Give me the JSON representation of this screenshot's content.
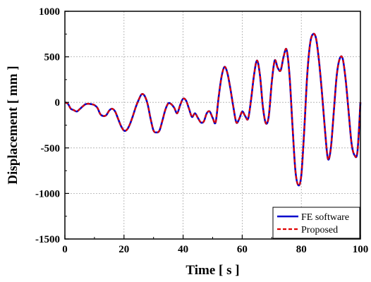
{
  "chart_data": {
    "type": "line",
    "xlabel": "Time [ s ]",
    "ylabel": "Displacement [ mm ]",
    "xlim": [
      0,
      100
    ],
    "ylim": [
      -1500,
      1000
    ],
    "x_ticks": [
      0,
      20,
      40,
      60,
      80,
      100
    ],
    "x_tick_labels": [
      "0",
      "20",
      "40",
      "60",
      "80",
      "100"
    ],
    "y_ticks": [
      1000,
      500,
      0,
      -500,
      -1000,
      -1500
    ],
    "y_tick_labels": [
      "1000",
      "500",
      "0",
      "-500",
      "-1000",
      "-1500"
    ],
    "grid": true,
    "legend_position": "bottom-right",
    "series": [
      {
        "name": "FE software",
        "color": "#0000cc",
        "style": "solid",
        "x": [
          0,
          1,
          2,
          3,
          4,
          5,
          6,
          7,
          8,
          9,
          10,
          11,
          12,
          13,
          14,
          15,
          16,
          17,
          18,
          19,
          20,
          21,
          22,
          23,
          24,
          25,
          26,
          27,
          28,
          29,
          30,
          31,
          32,
          33,
          34,
          35,
          36,
          37,
          38,
          39,
          40,
          41,
          42,
          43,
          44,
          45,
          46,
          47,
          48,
          49,
          50,
          51,
          52,
          53,
          54,
          55,
          56,
          57,
          58,
          59,
          60,
          61,
          62,
          63,
          64,
          65,
          66,
          67,
          68,
          69,
          70,
          71,
          72,
          73,
          74,
          75,
          76,
          77,
          78,
          79,
          80,
          81,
          82,
          83,
          84,
          85,
          86,
          87,
          88,
          89,
          90,
          91,
          92,
          93,
          94,
          95,
          96,
          97,
          98,
          99,
          100
        ],
        "y": [
          0,
          -15,
          -70,
          -85,
          -100,
          -75,
          -45,
          -20,
          -15,
          -20,
          -30,
          -60,
          -130,
          -150,
          -140,
          -90,
          -70,
          -100,
          -180,
          -260,
          -310,
          -300,
          -240,
          -150,
          -50,
          30,
          90,
          70,
          -20,
          -180,
          -310,
          -330,
          -310,
          -200,
          -80,
          -10,
          -20,
          -60,
          -120,
          -30,
          40,
          20,
          -70,
          -160,
          -120,
          -170,
          -220,
          -210,
          -120,
          -100,
          -170,
          -220,
          50,
          280,
          390,
          320,
          150,
          -50,
          -220,
          -180,
          -100,
          -150,
          -180,
          30,
          300,
          460,
          300,
          -50,
          -230,
          -150,
          220,
          460,
          380,
          350,
          500,
          580,
          300,
          -250,
          -750,
          -910,
          -800,
          -300,
          300,
          650,
          750,
          700,
          450,
          100,
          -300,
          -620,
          -500,
          -100,
          300,
          480,
          480,
          250,
          -100,
          -450,
          -580,
          -540,
          0
        ]
      },
      {
        "name": "Proposed",
        "color": "#e00000",
        "style": "dashed",
        "x": [
          0,
          1,
          2,
          3,
          4,
          5,
          6,
          7,
          8,
          9,
          10,
          11,
          12,
          13,
          14,
          15,
          16,
          17,
          18,
          19,
          20,
          21,
          22,
          23,
          24,
          25,
          26,
          27,
          28,
          29,
          30,
          31,
          32,
          33,
          34,
          35,
          36,
          37,
          38,
          39,
          40,
          41,
          42,
          43,
          44,
          45,
          46,
          47,
          48,
          49,
          50,
          51,
          52,
          53,
          54,
          55,
          56,
          57,
          58,
          59,
          60,
          61,
          62,
          63,
          64,
          65,
          66,
          67,
          68,
          69,
          70,
          71,
          72,
          73,
          74,
          75,
          76,
          77,
          78,
          79,
          80,
          81,
          82,
          83,
          84,
          85,
          86,
          87,
          88,
          89,
          90,
          91,
          92,
          93,
          94,
          95,
          96,
          97,
          98,
          99,
          100
        ],
        "y": [
          0,
          -15,
          -70,
          -85,
          -100,
          -75,
          -45,
          -20,
          -15,
          -20,
          -30,
          -60,
          -130,
          -150,
          -140,
          -90,
          -70,
          -100,
          -180,
          -260,
          -310,
          -300,
          -240,
          -150,
          -50,
          30,
          90,
          70,
          -20,
          -180,
          -310,
          -330,
          -310,
          -200,
          -80,
          -10,
          -20,
          -60,
          -120,
          -30,
          40,
          20,
          -70,
          -160,
          -120,
          -170,
          -220,
          -210,
          -120,
          -100,
          -170,
          -220,
          50,
          280,
          390,
          320,
          150,
          -50,
          -220,
          -180,
          -100,
          -150,
          -180,
          30,
          300,
          460,
          300,
          -50,
          -230,
          -150,
          220,
          460,
          380,
          350,
          500,
          580,
          300,
          -250,
          -750,
          -910,
          -800,
          -300,
          300,
          650,
          750,
          700,
          450,
          100,
          -300,
          -620,
          -500,
          -100,
          300,
          480,
          480,
          250,
          -100,
          -450,
          -580,
          -540,
          0
        ]
      }
    ]
  }
}
